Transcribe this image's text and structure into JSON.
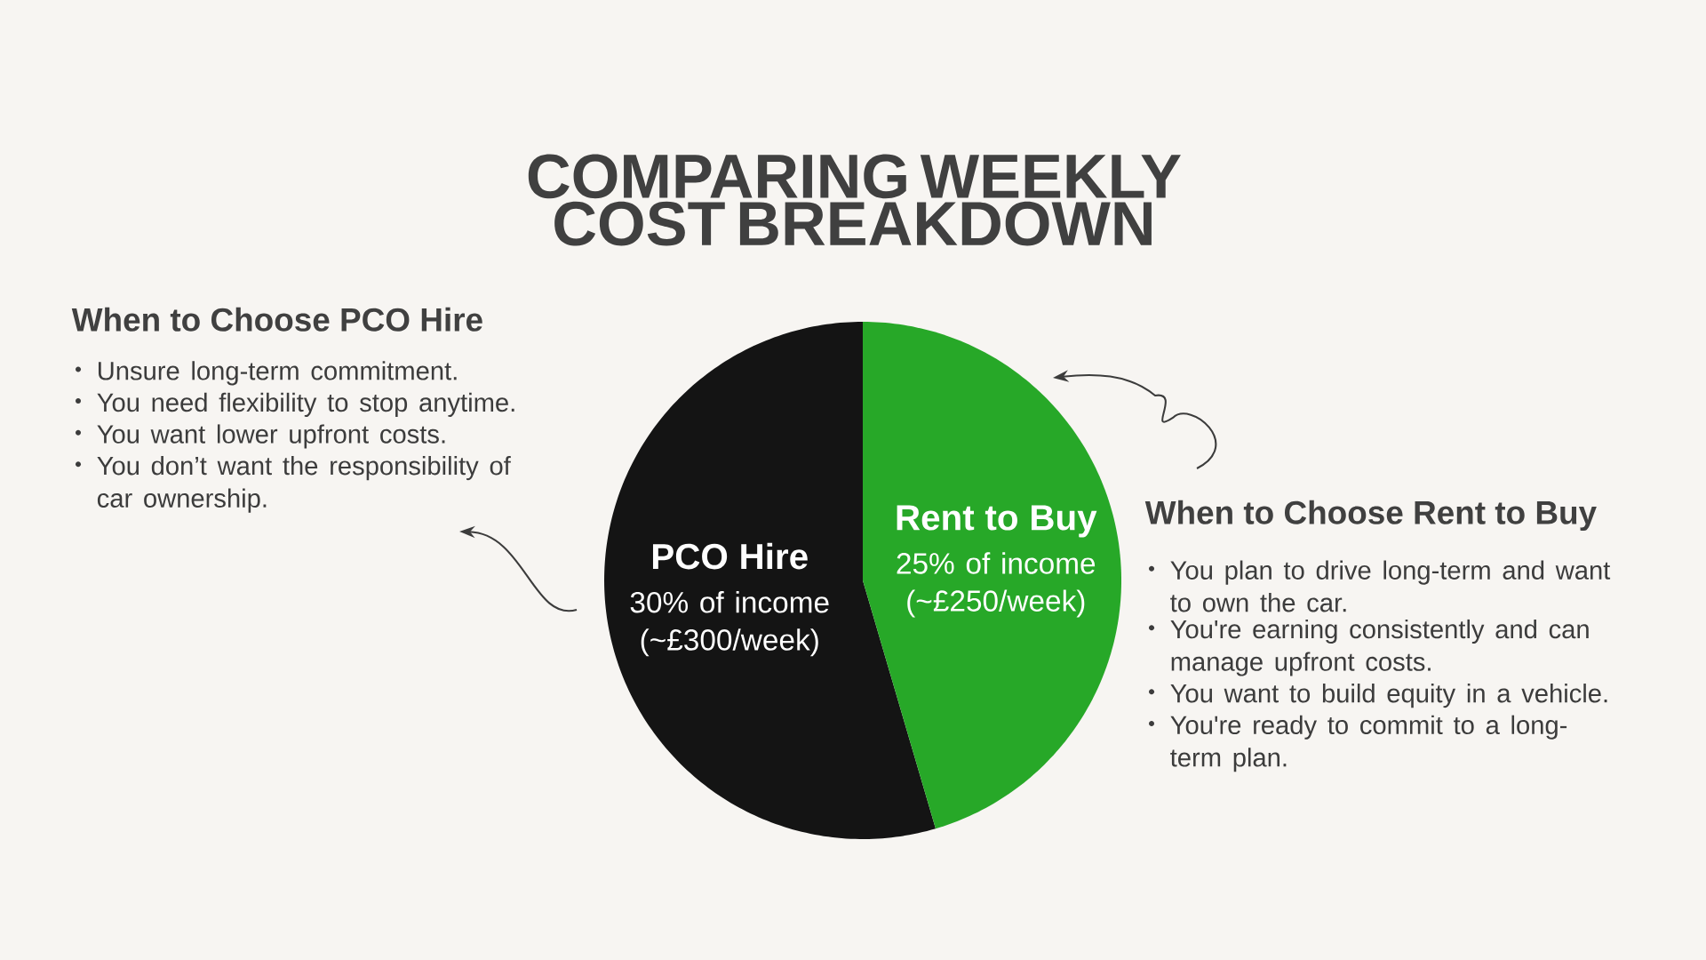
{
  "chart_data": {
    "type": "pie",
    "title": "COMPARING WEEKLY COST BREAKDOWN",
    "categories": [
      "PCO Hire",
      "Rent to Buy"
    ],
    "values": [
      30,
      25
    ],
    "value_labels": [
      "30% of income (~£300/week)",
      "25% of income (~£250/week)"
    ],
    "colors": [
      "#141414",
      "#27a828"
    ],
    "annotations": [
      "When to Choose PCO Hire",
      "Unsure long-term commitment.",
      "You need flexibility to stop anytime.",
      "You want lower upfront costs.",
      "You don’t want the responsibility of car ownership.",
      "When to Choose Rent to Buy",
      "You plan to drive long-term and want to own the car.",
      "You're earning consistently and can manage upfront costs.",
      "You want to build equity in a vehicle.",
      "You're ready to commit to a long-term plan."
    ]
  }
}
